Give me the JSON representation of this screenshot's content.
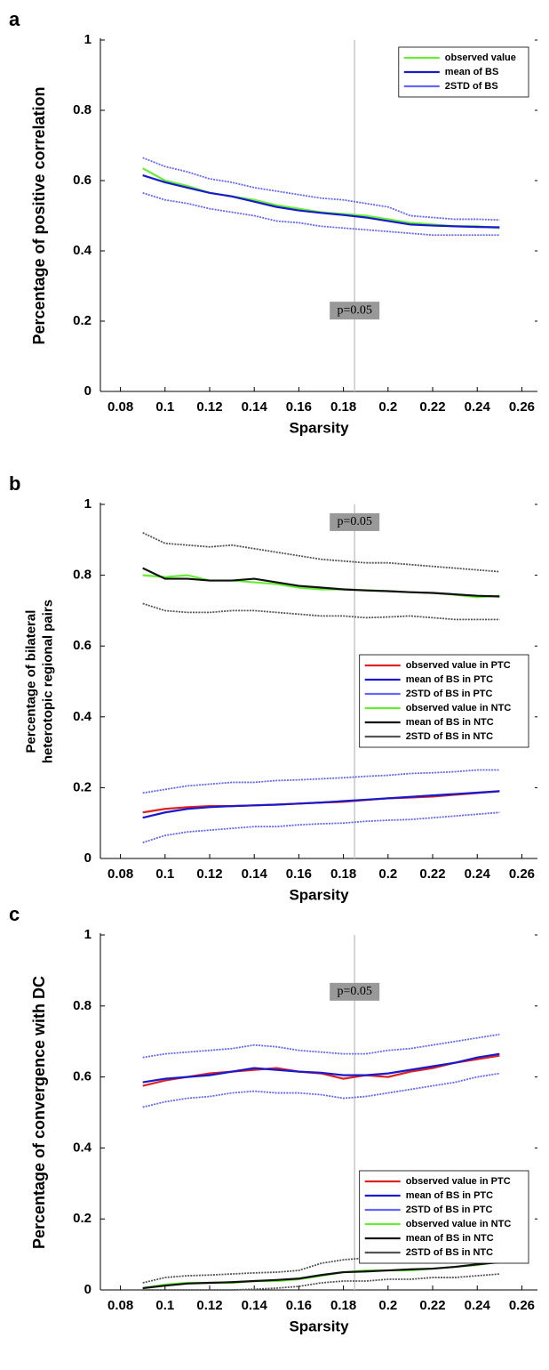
{
  "chart_data": [
    {
      "type": "line",
      "panel_label": "a",
      "xlabel": "Sparsity",
      "ylabel": [
        "Percentage of positive correlation"
      ],
      "x": [
        0.09,
        0.1,
        0.11,
        0.12,
        0.13,
        0.14,
        0.15,
        0.16,
        0.17,
        0.18,
        0.19,
        0.2,
        0.21,
        0.22,
        0.23,
        0.24,
        0.25
      ],
      "xlim": [
        0.071,
        0.267
      ],
      "xticks": [
        0.08,
        0.1,
        0.12,
        0.14,
        0.16,
        0.18,
        0.2,
        0.22,
        0.24,
        0.26
      ],
      "ylim": [
        0,
        1
      ],
      "yticks": [
        0,
        0.2,
        0.4,
        0.6,
        0.8,
        1
      ],
      "vline": 0.185,
      "annotation": "p=0.05",
      "legend": "upper right",
      "series": [
        {
          "name": "observed value",
          "color": "#66ee33",
          "values": [
            0.635,
            0.6,
            0.585,
            0.565,
            0.555,
            0.545,
            0.53,
            0.52,
            0.51,
            0.505,
            0.5,
            0.49,
            0.48,
            0.475,
            0.47,
            0.47,
            0.465
          ]
        },
        {
          "name": "mean of BS",
          "color": "#1a1acc",
          "values": [
            0.615,
            0.595,
            0.58,
            0.565,
            0.555,
            0.54,
            0.525,
            0.515,
            0.508,
            0.502,
            0.495,
            0.485,
            0.475,
            0.472,
            0.47,
            0.468,
            0.467
          ]
        },
        {
          "name": "2STD of BS",
          "color": "#6666ff",
          "style": "dotted",
          "upper": [
            0.665,
            0.64,
            0.625,
            0.605,
            0.595,
            0.58,
            0.57,
            0.56,
            0.55,
            0.545,
            0.535,
            0.525,
            0.5,
            0.495,
            0.49,
            0.49,
            0.488
          ],
          "lower": [
            0.565,
            0.545,
            0.535,
            0.52,
            0.51,
            0.5,
            0.485,
            0.48,
            0.47,
            0.465,
            0.46,
            0.455,
            0.45,
            0.445,
            0.445,
            0.445,
            0.445
          ]
        }
      ]
    },
    {
      "type": "line",
      "panel_label": "b",
      "xlabel": "Sparsity",
      "ylabel": [
        "Percentage of bilateral",
        "heterotopic regional pairs"
      ],
      "x": [
        0.09,
        0.1,
        0.11,
        0.12,
        0.13,
        0.14,
        0.15,
        0.16,
        0.17,
        0.18,
        0.19,
        0.2,
        0.21,
        0.22,
        0.23,
        0.24,
        0.25
      ],
      "xlim": [
        0.071,
        0.267
      ],
      "xticks": [
        0.08,
        0.1,
        0.12,
        0.14,
        0.16,
        0.18,
        0.2,
        0.22,
        0.24,
        0.26
      ],
      "ylim": [
        0,
        1
      ],
      "yticks": [
        0,
        0.2,
        0.4,
        0.6,
        0.8,
        1
      ],
      "vline": 0.185,
      "annotation": "p=0.05",
      "legend": "center right",
      "series": [
        {
          "name": "observed value in PTC",
          "color": "#dd2222",
          "values": [
            0.13,
            0.14,
            0.145,
            0.148,
            0.148,
            0.15,
            0.152,
            0.155,
            0.158,
            0.16,
            0.165,
            0.17,
            0.172,
            0.175,
            0.18,
            0.185,
            0.19
          ]
        },
        {
          "name": "mean of BS in PTC",
          "color": "#1a1acc",
          "values": [
            0.115,
            0.13,
            0.14,
            0.145,
            0.148,
            0.15,
            0.152,
            0.155,
            0.158,
            0.162,
            0.166,
            0.17,
            0.174,
            0.178,
            0.182,
            0.186,
            0.19
          ]
        },
        {
          "name": "2STD of BS in PTC",
          "color": "#6666ff",
          "style": "dotted",
          "upper": [
            0.185,
            0.195,
            0.205,
            0.21,
            0.215,
            0.215,
            0.22,
            0.222,
            0.225,
            0.228,
            0.232,
            0.235,
            0.24,
            0.242,
            0.245,
            0.25,
            0.25
          ],
          "lower": [
            0.045,
            0.065,
            0.075,
            0.08,
            0.085,
            0.09,
            0.09,
            0.095,
            0.098,
            0.1,
            0.105,
            0.108,
            0.11,
            0.115,
            0.12,
            0.125,
            0.13
          ]
        },
        {
          "name": "observed value in NTC",
          "color": "#66ee33",
          "values": [
            0.8,
            0.795,
            0.8,
            0.785,
            0.785,
            0.78,
            0.775,
            0.765,
            0.76,
            0.76,
            0.758,
            0.755,
            0.752,
            0.75,
            0.745,
            0.738,
            0.742
          ]
        },
        {
          "name": "mean of BS in NTC",
          "color": "#111111",
          "values": [
            0.82,
            0.79,
            0.79,
            0.785,
            0.785,
            0.79,
            0.78,
            0.77,
            0.765,
            0.76,
            0.757,
            0.755,
            0.752,
            0.75,
            0.746,
            0.742,
            0.74
          ]
        },
        {
          "name": "2STD of BS in NTC",
          "color": "#555555",
          "style": "dotted",
          "upper": [
            0.92,
            0.89,
            0.885,
            0.88,
            0.885,
            0.875,
            0.865,
            0.855,
            0.845,
            0.84,
            0.835,
            0.835,
            0.83,
            0.825,
            0.82,
            0.815,
            0.81
          ],
          "lower": [
            0.72,
            0.7,
            0.695,
            0.695,
            0.7,
            0.7,
            0.695,
            0.69,
            0.685,
            0.685,
            0.68,
            0.682,
            0.685,
            0.68,
            0.675,
            0.675,
            0.675
          ]
        }
      ]
    },
    {
      "type": "line",
      "panel_label": "c",
      "xlabel": "Sparsity",
      "ylabel": [
        "Percentage of convergence with DC"
      ],
      "x": [
        0.09,
        0.1,
        0.11,
        0.12,
        0.13,
        0.14,
        0.15,
        0.16,
        0.17,
        0.18,
        0.19,
        0.2,
        0.21,
        0.22,
        0.23,
        0.24,
        0.25
      ],
      "xlim": [
        0.071,
        0.267
      ],
      "xticks": [
        0.08,
        0.1,
        0.12,
        0.14,
        0.16,
        0.18,
        0.2,
        0.22,
        0.24,
        0.26
      ],
      "ylim": [
        0,
        1
      ],
      "yticks": [
        0,
        0.2,
        0.4,
        0.6,
        0.8,
        1
      ],
      "vline": 0.185,
      "annotation": "p=0.05",
      "legend": "lower right",
      "series": [
        {
          "name": "observed value in PTC",
          "color": "#dd2222",
          "values": [
            0.575,
            0.59,
            0.6,
            0.61,
            0.615,
            0.62,
            0.625,
            0.615,
            0.61,
            0.595,
            0.605,
            0.6,
            0.615,
            0.625,
            0.64,
            0.65,
            0.66
          ]
        },
        {
          "name": "mean of BS in PTC",
          "color": "#1a1acc",
          "values": [
            0.585,
            0.595,
            0.6,
            0.605,
            0.615,
            0.625,
            0.62,
            0.615,
            0.612,
            0.605,
            0.605,
            0.61,
            0.62,
            0.63,
            0.64,
            0.655,
            0.665
          ]
        },
        {
          "name": "2STD of BS in PTC",
          "color": "#6666ff",
          "style": "dotted",
          "upper": [
            0.655,
            0.665,
            0.67,
            0.675,
            0.68,
            0.69,
            0.685,
            0.675,
            0.67,
            0.665,
            0.665,
            0.675,
            0.68,
            0.69,
            0.7,
            0.71,
            0.72
          ],
          "lower": [
            0.515,
            0.53,
            0.54,
            0.545,
            0.555,
            0.56,
            0.555,
            0.555,
            0.55,
            0.54,
            0.545,
            0.555,
            0.565,
            0.575,
            0.585,
            0.6,
            0.61
          ]
        },
        {
          "name": "observed value in NTC",
          "color": "#66ee33",
          "values": [
            0.005,
            0.015,
            0.02,
            0.02,
            0.02,
            0.025,
            0.025,
            0.03,
            0.04,
            0.05,
            0.055,
            0.055,
            0.055,
            0.06,
            0.065,
            0.07,
            0.08
          ]
        },
        {
          "name": "mean of BS in NTC",
          "color": "#111111",
          "values": [
            0.005,
            0.012,
            0.018,
            0.02,
            0.022,
            0.025,
            0.028,
            0.032,
            0.042,
            0.05,
            0.052,
            0.055,
            0.058,
            0.06,
            0.065,
            0.072,
            0.078
          ]
        },
        {
          "name": "2STD of BS in NTC",
          "color": "#555555",
          "style": "dotted",
          "upper": [
            0.02,
            0.035,
            0.04,
            0.042,
            0.045,
            0.048,
            0.05,
            0.055,
            0.075,
            0.085,
            0.09,
            0.095,
            0.1,
            0.102,
            0.105,
            0.11,
            0.115
          ],
          "lower": [
            0.0,
            0.0,
            0.0,
            0.0,
            0.0,
            0.002,
            0.005,
            0.01,
            0.02,
            0.025,
            0.025,
            0.03,
            0.03,
            0.035,
            0.035,
            0.04,
            0.045
          ]
        }
      ]
    }
  ]
}
